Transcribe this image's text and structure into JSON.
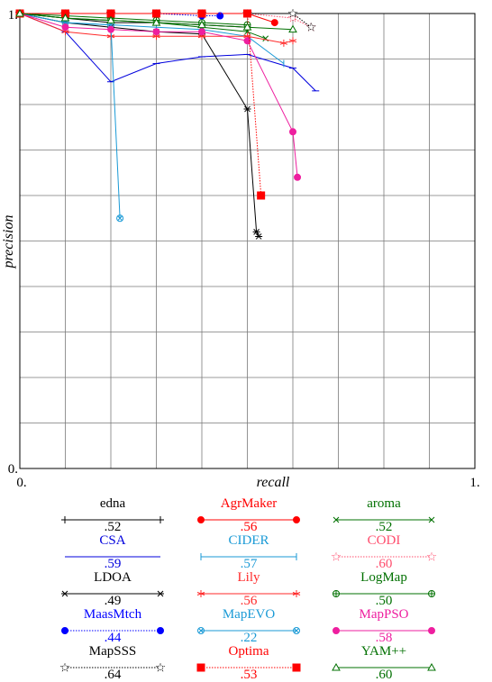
{
  "chart_data": {
    "type": "line",
    "xlabel": "recall",
    "ylabel": "precision",
    "xlim": [
      0,
      1
    ],
    "ylim": [
      0,
      1
    ],
    "x_ticks": [
      "0.",
      "1."
    ],
    "y_ticks": [
      "0.",
      "1."
    ],
    "grid": true,
    "legend_position": "bottom",
    "series": [
      {
        "name": "edna",
        "score": ".52",
        "color": "#000000",
        "marker": "plus",
        "points": [
          [
            0.0,
            1.0
          ],
          [
            0.1,
            0.99
          ],
          [
            0.2,
            0.98
          ],
          [
            0.3,
            0.98
          ],
          [
            0.4,
            0.975
          ],
          [
            0.5,
            0.97
          ]
        ]
      },
      {
        "name": "AgrMaker",
        "score": ".56",
        "color": "#ff0000",
        "marker": "dot",
        "points": [
          [
            0.0,
            1.0
          ],
          [
            0.1,
            1.0
          ],
          [
            0.2,
            1.0
          ],
          [
            0.3,
            1.0
          ],
          [
            0.4,
            1.0
          ],
          [
            0.5,
            1.0
          ],
          [
            0.56,
            0.98
          ]
        ]
      },
      {
        "name": "aroma",
        "score": ".52",
        "color": "#007000",
        "marker": "x",
        "points": [
          [
            0.0,
            1.0
          ],
          [
            0.1,
            0.99
          ],
          [
            0.2,
            0.985
          ],
          [
            0.3,
            0.98
          ],
          [
            0.4,
            0.97
          ],
          [
            0.5,
            0.96
          ],
          [
            0.54,
            0.945
          ]
        ]
      },
      {
        "name": "CSA",
        "score": ".59",
        "color": "#0000dd",
        "marker": "none",
        "points": [
          [
            0.0,
            1.0
          ],
          [
            0.1,
            0.96
          ],
          [
            0.2,
            0.85
          ],
          [
            0.3,
            0.89
          ],
          [
            0.4,
            0.905
          ],
          [
            0.5,
            0.91
          ],
          [
            0.6,
            0.88
          ],
          [
            0.65,
            0.83
          ]
        ]
      },
      {
        "name": "CIDER",
        "score": ".57",
        "color": "#1a9ad6",
        "marker": "bar",
        "points": [
          [
            0.0,
            1.0
          ],
          [
            0.1,
            0.98
          ],
          [
            0.2,
            0.975
          ],
          [
            0.3,
            0.97
          ],
          [
            0.4,
            0.965
          ],
          [
            0.5,
            0.95
          ],
          [
            0.58,
            0.89
          ]
        ]
      },
      {
        "name": "CODI",
        "score": ".60",
        "color": "#ff4d6d",
        "marker": "star-open",
        "dotted": true,
        "points": [
          [
            0.0,
            1.0
          ],
          [
            0.1,
            1.0
          ],
          [
            0.2,
            1.0
          ],
          [
            0.3,
            1.0
          ],
          [
            0.4,
            1.0
          ],
          [
            0.5,
            1.0
          ],
          [
            0.6,
            0.99
          ],
          [
            0.64,
            0.97
          ]
        ]
      },
      {
        "name": "LDOA",
        "score": ".49",
        "color": "#000000",
        "marker": "asterisk",
        "points": [
          [
            0.0,
            1.0
          ],
          [
            0.1,
            0.98
          ],
          [
            0.2,
            0.97
          ],
          [
            0.3,
            0.96
          ],
          [
            0.4,
            0.955
          ],
          [
            0.5,
            0.79
          ],
          [
            0.52,
            0.52
          ],
          [
            0.525,
            0.51
          ]
        ]
      },
      {
        "name": "Lily",
        "score": ".56",
        "color": "#ff2a2a",
        "marker": "star",
        "points": [
          [
            0.0,
            1.0
          ],
          [
            0.1,
            0.96
          ],
          [
            0.2,
            0.95
          ],
          [
            0.3,
            0.95
          ],
          [
            0.4,
            0.95
          ],
          [
            0.5,
            0.95
          ],
          [
            0.58,
            0.935
          ],
          [
            0.6,
            0.94
          ]
        ]
      },
      {
        "name": "LogMap",
        "score": ".50",
        "color": "#007000",
        "marker": "circle-plus",
        "points": [
          [
            0.0,
            1.0
          ],
          [
            0.1,
            0.995
          ],
          [
            0.2,
            0.99
          ],
          [
            0.3,
            0.985
          ],
          [
            0.4,
            0.98
          ],
          [
            0.5,
            0.975
          ]
        ]
      },
      {
        "name": "MaasMtch",
        "score": ".44",
        "color": "#0000ff",
        "marker": "dot",
        "dotted": true,
        "points": [
          [
            0.0,
            1.0
          ],
          [
            0.1,
            1.0
          ],
          [
            0.2,
            1.0
          ],
          [
            0.3,
            1.0
          ],
          [
            0.4,
            0.995
          ],
          [
            0.44,
            0.995
          ]
        ]
      },
      {
        "name": "MapEVO",
        "score": ".22",
        "color": "#1a9ad6",
        "marker": "circle-x",
        "points": [
          [
            0.0,
            1.0
          ],
          [
            0.1,
            0.98
          ],
          [
            0.2,
            0.975
          ],
          [
            0.22,
            0.55
          ]
        ]
      },
      {
        "name": "MapPSO",
        "score": ".58",
        "color": "#ee1f9f",
        "marker": "dot",
        "points": [
          [
            0.0,
            1.0
          ],
          [
            0.1,
            0.97
          ],
          [
            0.2,
            0.965
          ],
          [
            0.3,
            0.96
          ],
          [
            0.4,
            0.96
          ],
          [
            0.5,
            0.94
          ],
          [
            0.6,
            0.74
          ],
          [
            0.61,
            0.64
          ]
        ]
      },
      {
        "name": "MapSSS",
        "score": ".64",
        "color": "#000000",
        "marker": "star-open",
        "dotted": true,
        "points": [
          [
            0.0,
            1.0
          ],
          [
            0.1,
            1.0
          ],
          [
            0.2,
            1.0
          ],
          [
            0.3,
            1.0
          ],
          [
            0.4,
            1.0
          ],
          [
            0.5,
            1.0
          ],
          [
            0.6,
            1.0
          ],
          [
            0.64,
            0.97
          ]
        ]
      },
      {
        "name": "Optima",
        "score": ".53",
        "color": "#ff0000",
        "marker": "square",
        "dotted": true,
        "points": [
          [
            0.0,
            1.0
          ],
          [
            0.1,
            1.0
          ],
          [
            0.2,
            1.0
          ],
          [
            0.3,
            1.0
          ],
          [
            0.4,
            1.0
          ],
          [
            0.5,
            1.0
          ],
          [
            0.53,
            0.6
          ]
        ]
      },
      {
        "name": "YAM++",
        "score": ".60",
        "color": "#007000",
        "marker": "triangle",
        "points": [
          [
            0.0,
            1.0
          ],
          [
            0.1,
            0.99
          ],
          [
            0.2,
            0.985
          ],
          [
            0.3,
            0.98
          ],
          [
            0.4,
            0.975
          ],
          [
            0.5,
            0.97
          ],
          [
            0.6,
            0.965
          ]
        ]
      }
    ]
  },
  "legend": {
    "items": [
      {
        "name": "edna",
        "score": ".52"
      },
      {
        "name": "AgrMaker",
        "score": ".56"
      },
      {
        "name": "aroma",
        "score": ".52"
      },
      {
        "name": "CSA",
        "score": ".59"
      },
      {
        "name": "CIDER",
        "score": ".57"
      },
      {
        "name": "CODI",
        "score": ".60"
      },
      {
        "name": "LDOA",
        "score": ".49"
      },
      {
        "name": "Lily",
        "score": ".56"
      },
      {
        "name": "LogMap",
        "score": ".50"
      },
      {
        "name": "MaasMtch",
        "score": ".44"
      },
      {
        "name": "MapEVO",
        "score": ".22"
      },
      {
        "name": "MapPSO",
        "score": ".58"
      },
      {
        "name": "MapSSS",
        "score": ".64"
      },
      {
        "name": "Optima",
        "score": ".53"
      },
      {
        "name": "YAM++",
        "score": ".60"
      }
    ]
  }
}
